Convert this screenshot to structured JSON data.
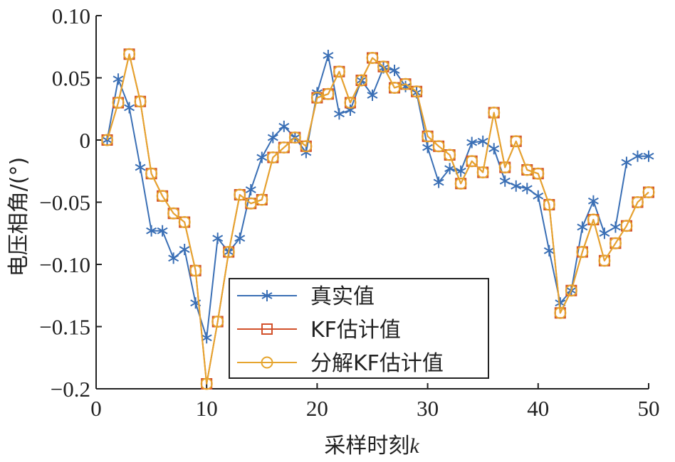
{
  "chart_data": {
    "type": "line",
    "xlabel": "采样时刻",
    "xlabel_var": "k",
    "ylabel": "电压相角/(°)",
    "xlim": [
      0,
      50
    ],
    "ylim": [
      -0.2,
      0.1
    ],
    "xticks": [
      0,
      10,
      20,
      30,
      40,
      50
    ],
    "xtick_labels": [
      "0",
      "10",
      "20",
      "30",
      "40",
      "50"
    ],
    "yticks": [
      0.1,
      0.05,
      0,
      -0.05,
      -0.1,
      -0.15,
      -0.2
    ],
    "ytick_labels": [
      "0.10",
      "0.05",
      "0",
      "−0.05",
      "−0.10",
      "−0.15",
      "−0.2"
    ],
    "grid": false,
    "legend_position": "bottom-center",
    "x": [
      1,
      2,
      3,
      4,
      5,
      6,
      7,
      8,
      9,
      10,
      11,
      12,
      13,
      14,
      15,
      16,
      17,
      18,
      19,
      20,
      21,
      22,
      23,
      24,
      25,
      26,
      27,
      28,
      29,
      30,
      31,
      32,
      33,
      34,
      35,
      36,
      37,
      38,
      39,
      40,
      41,
      42,
      43,
      44,
      45,
      46,
      47,
      48,
      49,
      50
    ],
    "series": [
      {
        "name": "真实值",
        "color": "#3a6fb5",
        "marker": "asterisk",
        "values": [
          0,
          0.049,
          0.026,
          -0.022,
          -0.073,
          -0.073,
          -0.095,
          -0.088,
          -0.131,
          -0.159,
          -0.079,
          -0.09,
          -0.079,
          -0.04,
          -0.014,
          0.002,
          0.011,
          0.002,
          -0.01,
          0.038,
          0.068,
          0.021,
          0.024,
          0.048,
          0.036,
          0.058,
          0.056,
          0.043,
          0.038,
          -0.006,
          -0.034,
          -0.023,
          -0.025,
          -0.002,
          -0.001,
          -0.007,
          -0.033,
          -0.037,
          -0.039,
          -0.045,
          -0.089,
          -0.131,
          -0.121,
          -0.07,
          -0.049,
          -0.075,
          -0.07,
          -0.018,
          -0.013,
          -0.013
        ]
      },
      {
        "name": "KF估计值",
        "color": "#d2502a",
        "marker": "square",
        "values": [
          0,
          0.03,
          0.069,
          0.031,
          -0.027,
          -0.045,
          -0.059,
          -0.066,
          -0.105,
          -0.196,
          -0.146,
          -0.09,
          -0.044,
          -0.051,
          -0.048,
          -0.014,
          -0.006,
          0.002,
          -0.005,
          0.034,
          0.037,
          0.055,
          0.03,
          0.048,
          0.066,
          0.059,
          0.042,
          0.045,
          0.039,
          0.003,
          -0.005,
          -0.012,
          -0.035,
          -0.017,
          -0.026,
          0.022,
          -0.022,
          -0.001,
          -0.024,
          -0.027,
          -0.052,
          -0.139,
          -0.121,
          -0.09,
          -0.064,
          -0.097,
          -0.083,
          -0.069,
          -0.05,
          -0.042
        ]
      },
      {
        "name": "分解KF估计值",
        "color": "#e6a52e",
        "marker": "circle",
        "values": [
          0,
          0.03,
          0.069,
          0.031,
          -0.027,
          -0.045,
          -0.059,
          -0.066,
          -0.105,
          -0.196,
          -0.146,
          -0.09,
          -0.044,
          -0.051,
          -0.048,
          -0.014,
          -0.006,
          0.002,
          -0.005,
          0.034,
          0.037,
          0.055,
          0.03,
          0.048,
          0.066,
          0.059,
          0.042,
          0.045,
          0.039,
          0.003,
          -0.005,
          -0.012,
          -0.035,
          -0.017,
          -0.026,
          0.022,
          -0.022,
          -0.001,
          -0.024,
          -0.027,
          -0.052,
          -0.139,
          -0.121,
          -0.09,
          -0.064,
          -0.097,
          -0.083,
          -0.069,
          -0.05,
          -0.042
        ]
      }
    ]
  }
}
